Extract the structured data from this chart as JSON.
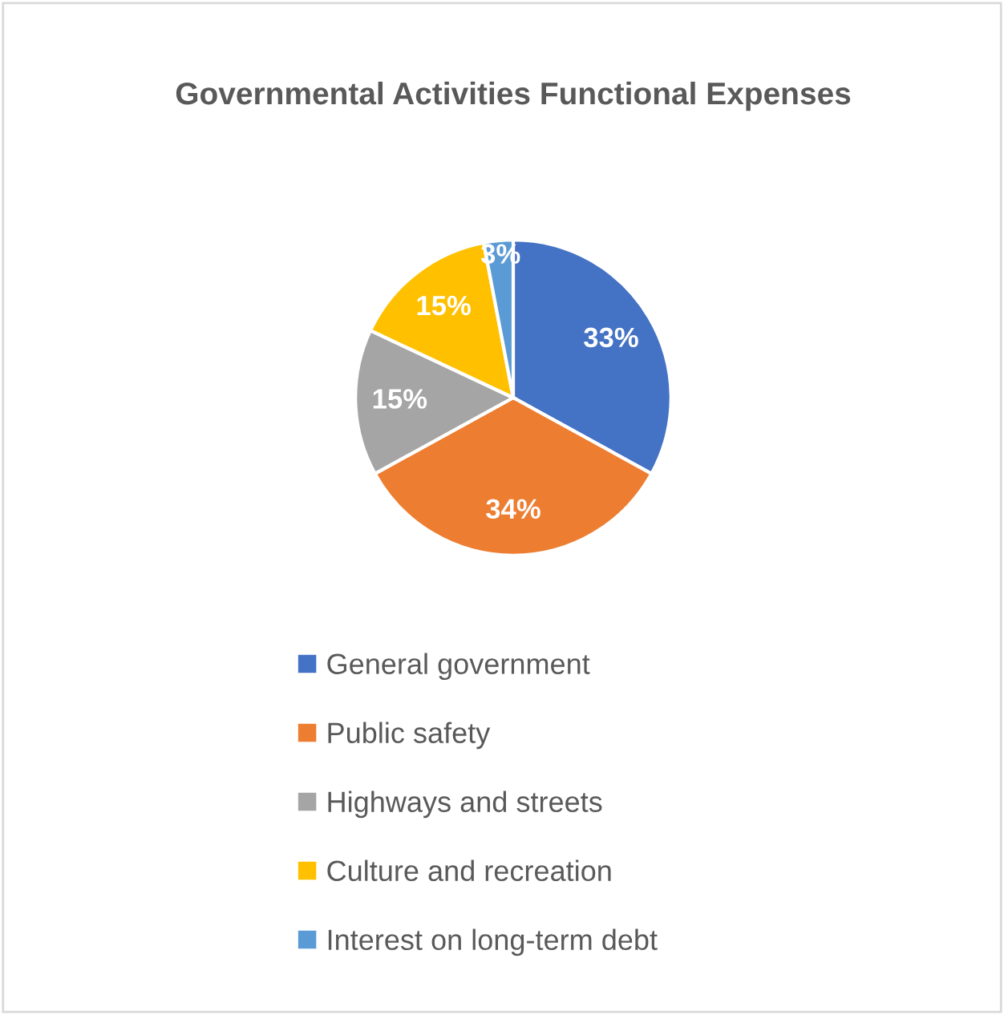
{
  "chart_data": {
    "type": "pie",
    "title": "Governmental Activities Functional Expenses",
    "categories": [
      "General government",
      "Public safety",
      "Highways and streets",
      "Culture and recreation",
      "Interest on long-term debt"
    ],
    "values": [
      33,
      34,
      15,
      15,
      3
    ],
    "colors": [
      "#4472c4",
      "#ed7d31",
      "#a5a5a5",
      "#ffc000",
      "#5b9bd5"
    ],
    "value_labels": [
      "33%",
      "34%",
      "15%",
      "15%",
      "3%"
    ],
    "legend": "bottom"
  }
}
